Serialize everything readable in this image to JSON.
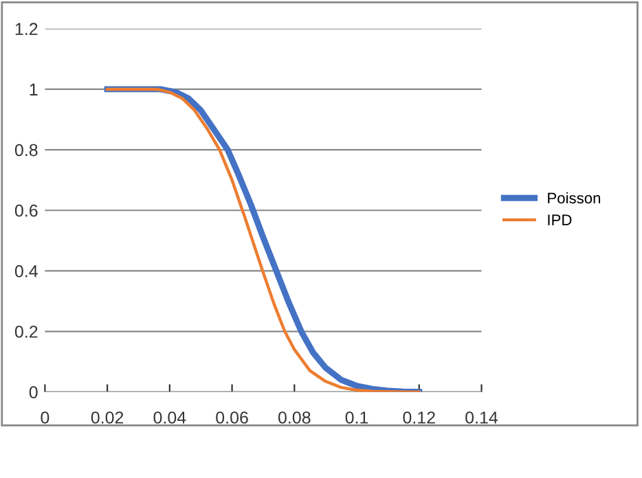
{
  "chart_data": {
    "type": "line",
    "series": [
      {
        "name": "Poisson",
        "color": "#4472c4",
        "x": [
          0.02,
          0.03,
          0.037,
          0.042,
          0.046,
          0.05,
          0.054,
          0.0586,
          0.062,
          0.066,
          0.07,
          0.0742,
          0.078,
          0.0822,
          0.086,
          0.09,
          0.095,
          0.1,
          0.105,
          0.11,
          0.115,
          0.12
        ],
        "values": [
          1,
          1,
          1,
          0.99,
          0.97,
          0.93,
          0.87,
          0.8,
          0.72,
          0.62,
          0.51,
          0.4,
          0.3,
          0.2,
          0.13,
          0.08,
          0.04,
          0.02,
          0.01,
          0.004,
          0.001,
          0
        ]
      },
      {
        "name": "IPD",
        "color": "#ed7d31",
        "x": [
          0.02,
          0.03,
          0.036,
          0.04,
          0.044,
          0.048,
          0.052,
          0.056,
          0.06,
          0.064,
          0.0698,
          0.0735,
          0.0769,
          0.08,
          0.085,
          0.09,
          0.095,
          0.1,
          0.105,
          0.11,
          0.115,
          0.12
        ],
        "values": [
          1,
          1,
          1,
          0.99,
          0.97,
          0.93,
          0.87,
          0.8,
          0.7,
          0.58,
          0.4,
          0.29,
          0.2,
          0.14,
          0.07,
          0.035,
          0.015,
          0.006,
          0.002,
          0.001,
          0,
          0
        ]
      }
    ],
    "xlim": [
      0,
      0.14
    ],
    "xticks": [
      0,
      0.02,
      0.04,
      0.06,
      0.08,
      0.1,
      0.12,
      0.14
    ],
    "ylim": [
      0,
      1.2
    ],
    "yticks": [
      0,
      0.2,
      0.4,
      0.6,
      0.8,
      1,
      1.2
    ],
    "grid": "y",
    "legend": "right",
    "marker": "none",
    "line_style": "solid"
  }
}
